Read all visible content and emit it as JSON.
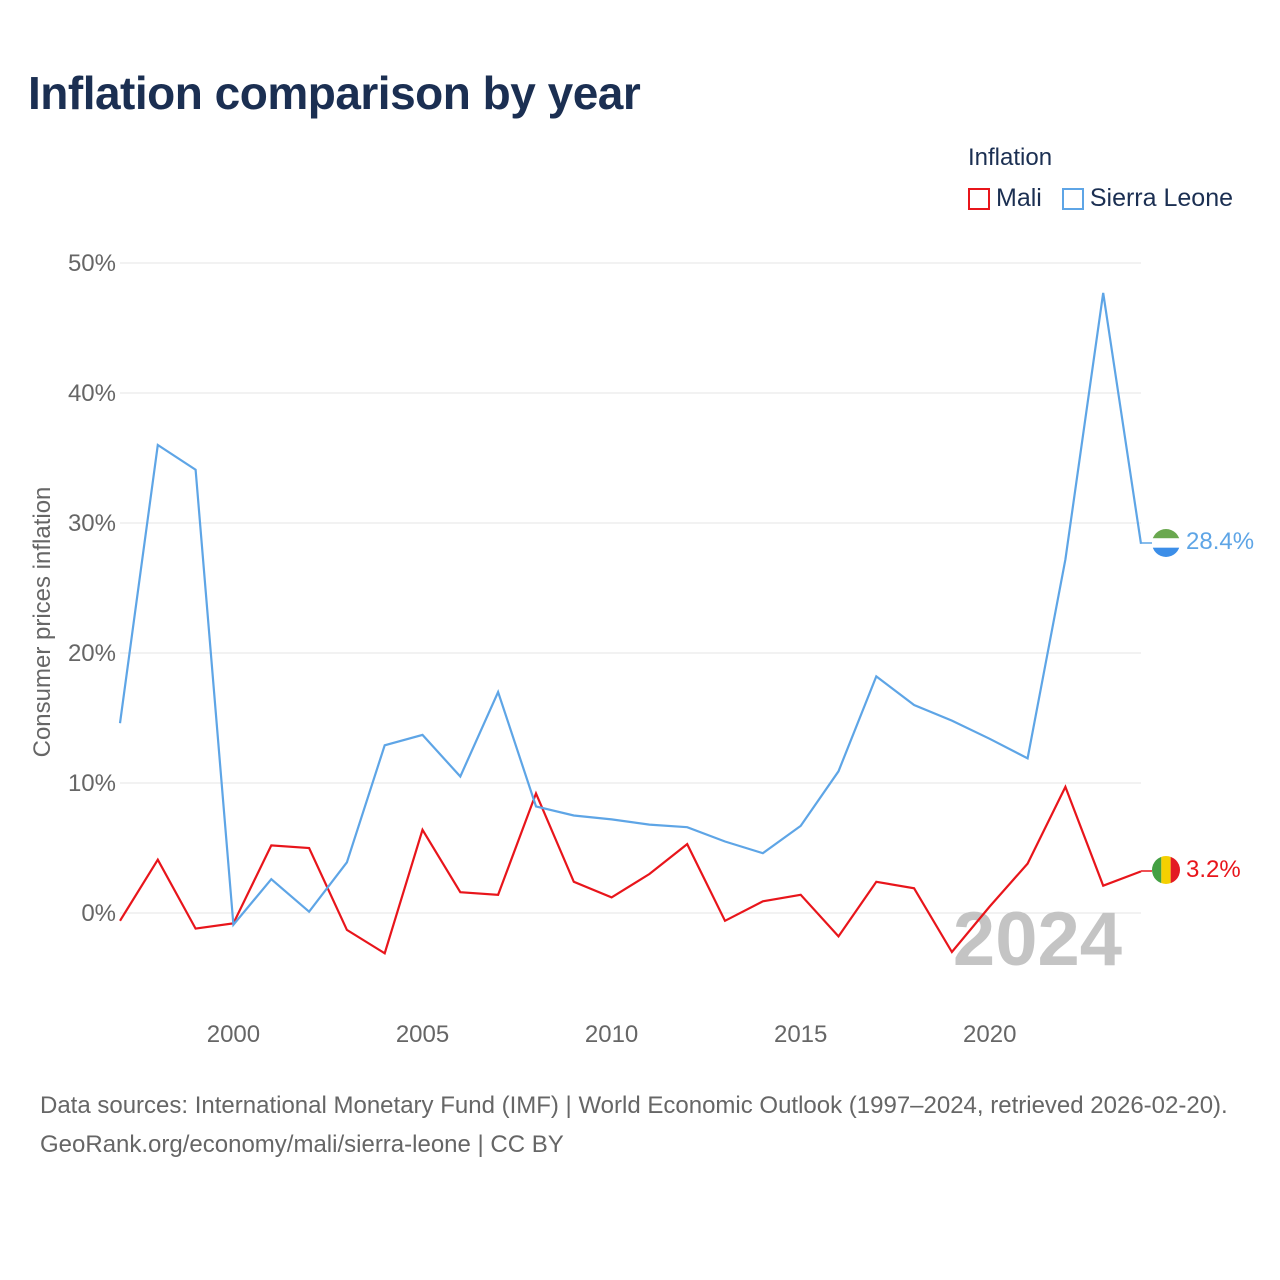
{
  "title": "Inflation comparison by year",
  "legend": {
    "title": "Inflation",
    "items": [
      {
        "label": "Mali",
        "color": "#e8151b"
      },
      {
        "label": "Sierra Leone",
        "color": "#5ea5e6"
      }
    ]
  },
  "watermark_year": "2024",
  "footer": {
    "sources": "Data sources: International Monetary Fund (IMF) | World Economic Outlook (1997–2024, retrieved 2026-02-20).",
    "credit": "GeoRank.org/economy/mali/sierra-leone | CC BY"
  },
  "chart_data": {
    "type": "line",
    "title": "Inflation comparison by year",
    "ylabel": "Consumer prices inflation",
    "xlabel": "",
    "xlim": [
      1997,
      2024
    ],
    "ylim": [
      -7,
      50
    ],
    "x_ticks": [
      2000,
      2005,
      2010,
      2015,
      2020
    ],
    "y_ticks": [
      0,
      10,
      20,
      30,
      40,
      50
    ],
    "y_tick_labels": [
      "0%",
      "10%",
      "20%",
      "30%",
      "40%",
      "50%"
    ],
    "x": [
      1997,
      1998,
      1999,
      2000,
      2001,
      2002,
      2003,
      2004,
      2005,
      2006,
      2007,
      2008,
      2009,
      2010,
      2011,
      2012,
      2013,
      2014,
      2015,
      2016,
      2017,
      2018,
      2019,
      2020,
      2021,
      2022,
      2023,
      2024
    ],
    "series": [
      {
        "name": "Mali",
        "color": "#e8151b",
        "end_label": "3.2%",
        "flag": "mali-flag",
        "values": [
          -0.6,
          4.1,
          -1.2,
          -0.8,
          5.2,
          5.0,
          -1.3,
          -3.1,
          6.4,
          1.6,
          1.4,
          9.2,
          2.4,
          1.2,
          3.0,
          5.3,
          -0.6,
          0.9,
          1.4,
          -1.8,
          2.4,
          1.9,
          -3.0,
          0.5,
          3.8,
          9.7,
          2.1,
          3.2
        ]
      },
      {
        "name": "Sierra Leone",
        "color": "#5ea5e6",
        "end_label": "28.4%",
        "flag": "sierra-leone-flag",
        "values": [
          14.6,
          36.0,
          34.1,
          -0.9,
          2.6,
          0.1,
          3.9,
          12.9,
          13.7,
          10.5,
          17.0,
          8.2,
          7.5,
          7.2,
          6.8,
          6.6,
          5.5,
          4.6,
          6.7,
          10.9,
          18.2,
          16.0,
          14.8,
          13.4,
          11.9,
          27.2,
          47.7,
          28.4
        ]
      }
    ]
  }
}
